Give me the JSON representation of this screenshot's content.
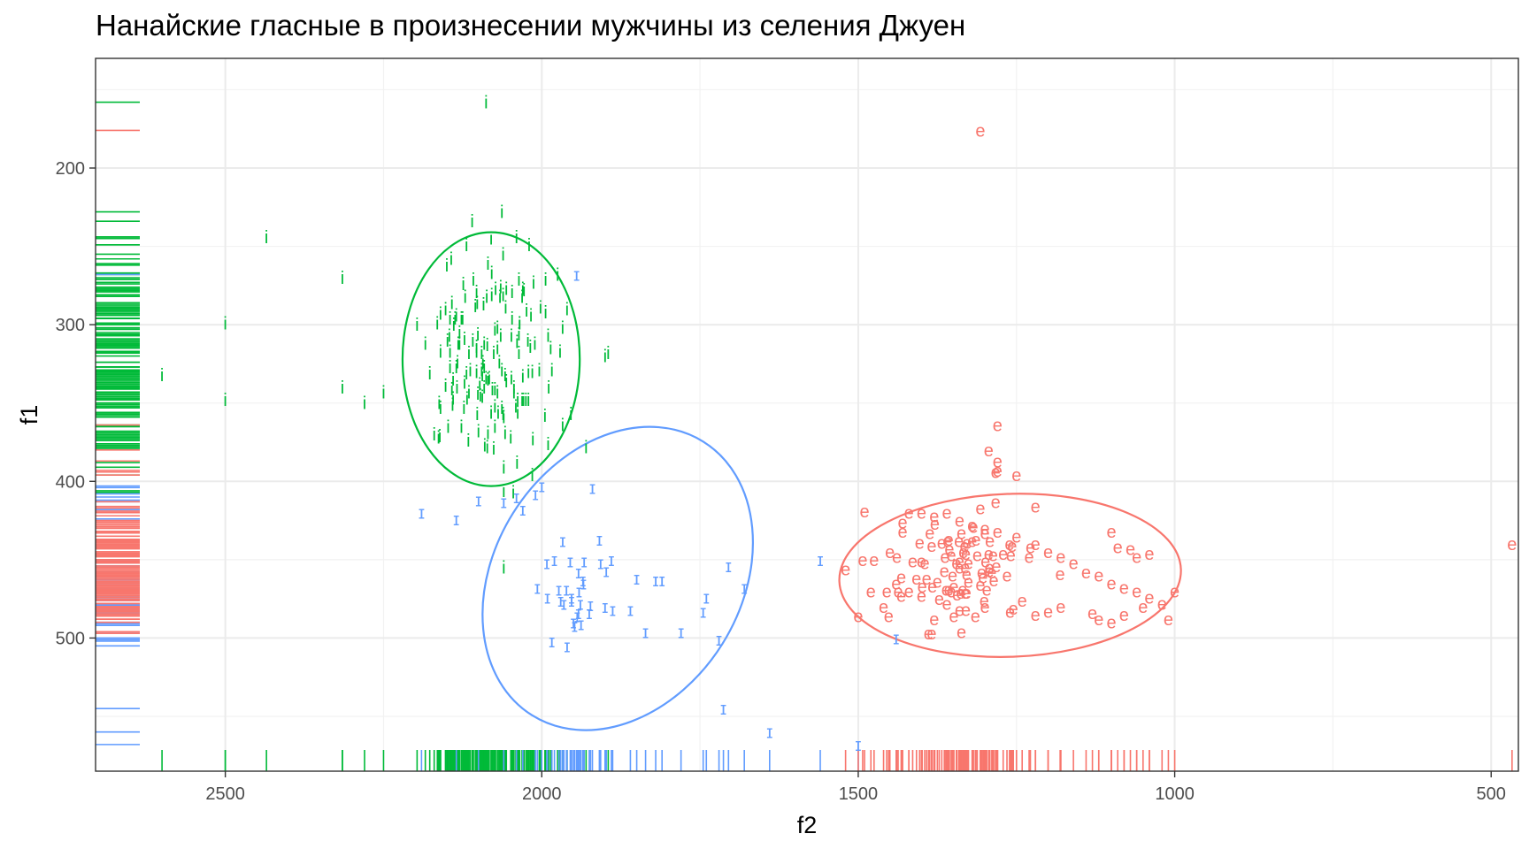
{
  "chart_data": {
    "type": "scatter",
    "title": "Нанайские гласные в произнесении мужчины из селения Джуен",
    "xlabel": "f2",
    "ylabel": "f1",
    "x_reversed": true,
    "y_reversed": true,
    "xlim": [
      2705,
      457
    ],
    "ylim": [
      130,
      585
    ],
    "xticks": [
      2500,
      2000,
      1500,
      1000,
      500
    ],
    "xtick_labels": [
      "2500",
      "2000",
      "1500",
      "1000",
      "500"
    ],
    "yticks": [
      200,
      300,
      400,
      500
    ],
    "ytick_labels": [
      "200",
      "300",
      "400",
      "500"
    ],
    "grid": true,
    "legend": "none",
    "rugs": "left and bottom",
    "ellipses": "per-vowel confidence ellipses",
    "series": [
      {
        "name": "i",
        "color": "#00BA38",
        "label": "i",
        "ellipse": {
          "cx": 2080,
          "cy": 322,
          "rx": 140,
          "ry": 81
        },
        "points": [
          [
            2088,
            158
          ],
          [
            2435,
            244
          ],
          [
            2600,
            332
          ],
          [
            2500,
            299
          ],
          [
            2500,
            348
          ],
          [
            2315,
            270
          ],
          [
            2315,
            340
          ],
          [
            2280,
            350
          ],
          [
            2250,
            343
          ],
          [
            2150,
            262
          ],
          [
            2110,
            234
          ],
          [
            2080,
            245
          ],
          [
            2040,
            244
          ],
          [
            2020,
            249
          ],
          [
            2165,
            299
          ],
          [
            2145,
            296
          ],
          [
            2130,
            305
          ],
          [
            1900,
            320
          ],
          [
            1895,
            318
          ],
          [
            1930,
            378
          ],
          [
            1990,
            376
          ],
          [
            2090,
            377
          ],
          [
            2100,
            368
          ],
          [
            2060,
            406
          ],
          [
            2060,
            455
          ]
        ],
        "cluster": {
          "cx": 2080,
          "cy": 320,
          "sx": 55,
          "sy": 35,
          "n": 160
        }
      },
      {
        "name": "ɪ",
        "color": "#619CFF",
        "label": "ɪ",
        "ellipse": {
          "cx": 1880,
          "cy": 462,
          "rx": 195,
          "ry": 103,
          "angle": 32
        },
        "points": [
          [
            1945,
            268
          ],
          [
            2190,
            420
          ],
          [
            2135,
            424
          ],
          [
            2100,
            412
          ],
          [
            2060,
            413
          ],
          [
            2040,
            410
          ],
          [
            2010,
            408
          ],
          [
            2000,
            403
          ],
          [
            2030,
            418
          ],
          [
            1980,
            450
          ],
          [
            1970,
            476
          ],
          [
            1920,
            404
          ],
          [
            1890,
            450
          ],
          [
            1860,
            482
          ],
          [
            1850,
            462
          ],
          [
            1820,
            463
          ],
          [
            1810,
            463
          ],
          [
            1780,
            496
          ],
          [
            1740,
            474
          ],
          [
            1745,
            483
          ],
          [
            1720,
            501
          ],
          [
            1713,
            545
          ],
          [
            1705,
            454
          ],
          [
            1680,
            468
          ],
          [
            1640,
            560
          ],
          [
            1560,
            450
          ],
          [
            1500,
            568
          ],
          [
            1440,
            500
          ],
          [
            1900,
            480
          ],
          [
            1950,
            490
          ],
          [
            1960,
            505
          ]
        ],
        "cluster": {
          "cx": 1940,
          "cy": 475,
          "sx": 30,
          "sy": 18,
          "n": 28
        }
      },
      {
        "name": "e",
        "color": "#F8766D",
        "label": "e",
        "ellipse": {
          "cx": 1260,
          "cy": 460,
          "rx": 270,
          "ry": 52,
          "angle": -2
        },
        "points": [
          [
            1307,
            176
          ],
          [
            1280,
            364
          ],
          [
            1294,
            380
          ],
          [
            1280,
            387
          ],
          [
            1280,
            393
          ],
          [
            1250,
            396
          ],
          [
            1220,
            416
          ],
          [
            1520,
            456
          ],
          [
            1475,
            450
          ],
          [
            1450,
            445
          ],
          [
            1430,
            432
          ],
          [
            1420,
            420
          ],
          [
            1400,
            420
          ],
          [
            1380,
            422
          ],
          [
            1360,
            420
          ],
          [
            1340,
            425
          ],
          [
            1320,
            428
          ],
          [
            1300,
            430
          ],
          [
            1280,
            432
          ],
          [
            1250,
            435
          ],
          [
            1220,
            440
          ],
          [
            1200,
            445
          ],
          [
            1180,
            448
          ],
          [
            1160,
            452
          ],
          [
            1140,
            458
          ],
          [
            1120,
            460
          ],
          [
            1100,
            465
          ],
          [
            1080,
            468
          ],
          [
            1060,
            470
          ],
          [
            1040,
            474
          ],
          [
            1020,
            478
          ],
          [
            1000,
            470
          ],
          [
            1100,
            432
          ],
          [
            1090,
            442
          ],
          [
            1070,
            443
          ],
          [
            1060,
            448
          ],
          [
            1040,
            446
          ],
          [
            1010,
            488
          ],
          [
            1050,
            480
          ],
          [
            1080,
            485
          ],
          [
            1100,
            490
          ],
          [
            1120,
            488
          ],
          [
            1130,
            484
          ],
          [
            1380,
            488
          ],
          [
            1420,
            470
          ],
          [
            1460,
            480
          ],
          [
            1500,
            486
          ],
          [
            1480,
            470
          ],
          [
            1440,
            465
          ],
          [
            1400,
            473
          ],
          [
            1360,
            478
          ],
          [
            1340,
            482
          ],
          [
            1300,
            480
          ],
          [
            1260,
            483
          ],
          [
            1220,
            485
          ],
          [
            1200,
            483
          ],
          [
            1180,
            480
          ],
          [
            467,
            440
          ]
        ],
        "cluster": {
          "cx": 1340,
          "cy": 455,
          "sx": 55,
          "sy": 18,
          "n": 90
        }
      }
    ]
  }
}
